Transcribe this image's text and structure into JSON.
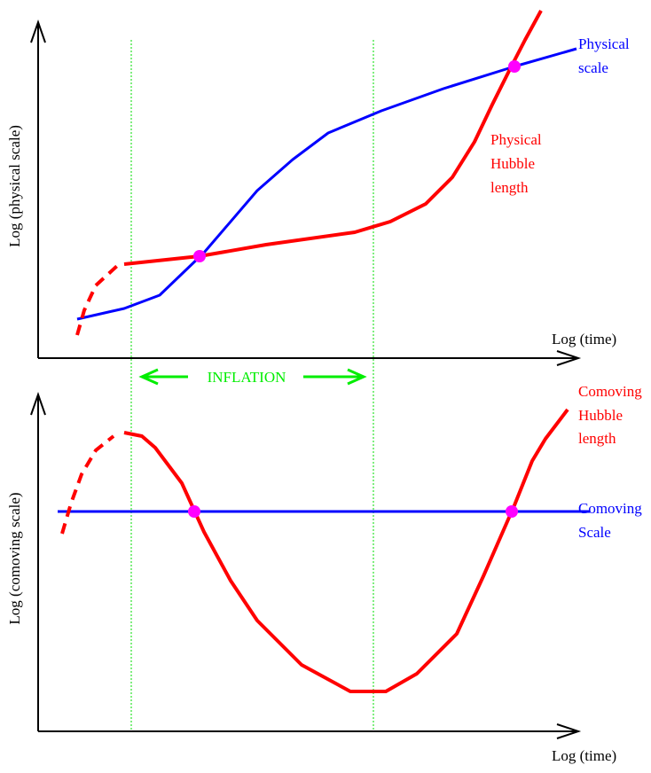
{
  "top": {
    "y_label": "Log (physical scale)",
    "x_label": "Log (time)",
    "scale_label": [
      "Physical",
      "scale"
    ],
    "hubble_label": [
      "Physical",
      "Hubble",
      "length"
    ]
  },
  "inflation": "INFLATION",
  "bottom": {
    "y_label": "Log (comoving scale)",
    "x_label": "Log (time)",
    "hubble_label": [
      "Comoving",
      "Hubble",
      "length"
    ],
    "scale_label": [
      "Comoving",
      "Scale"
    ]
  }
}
